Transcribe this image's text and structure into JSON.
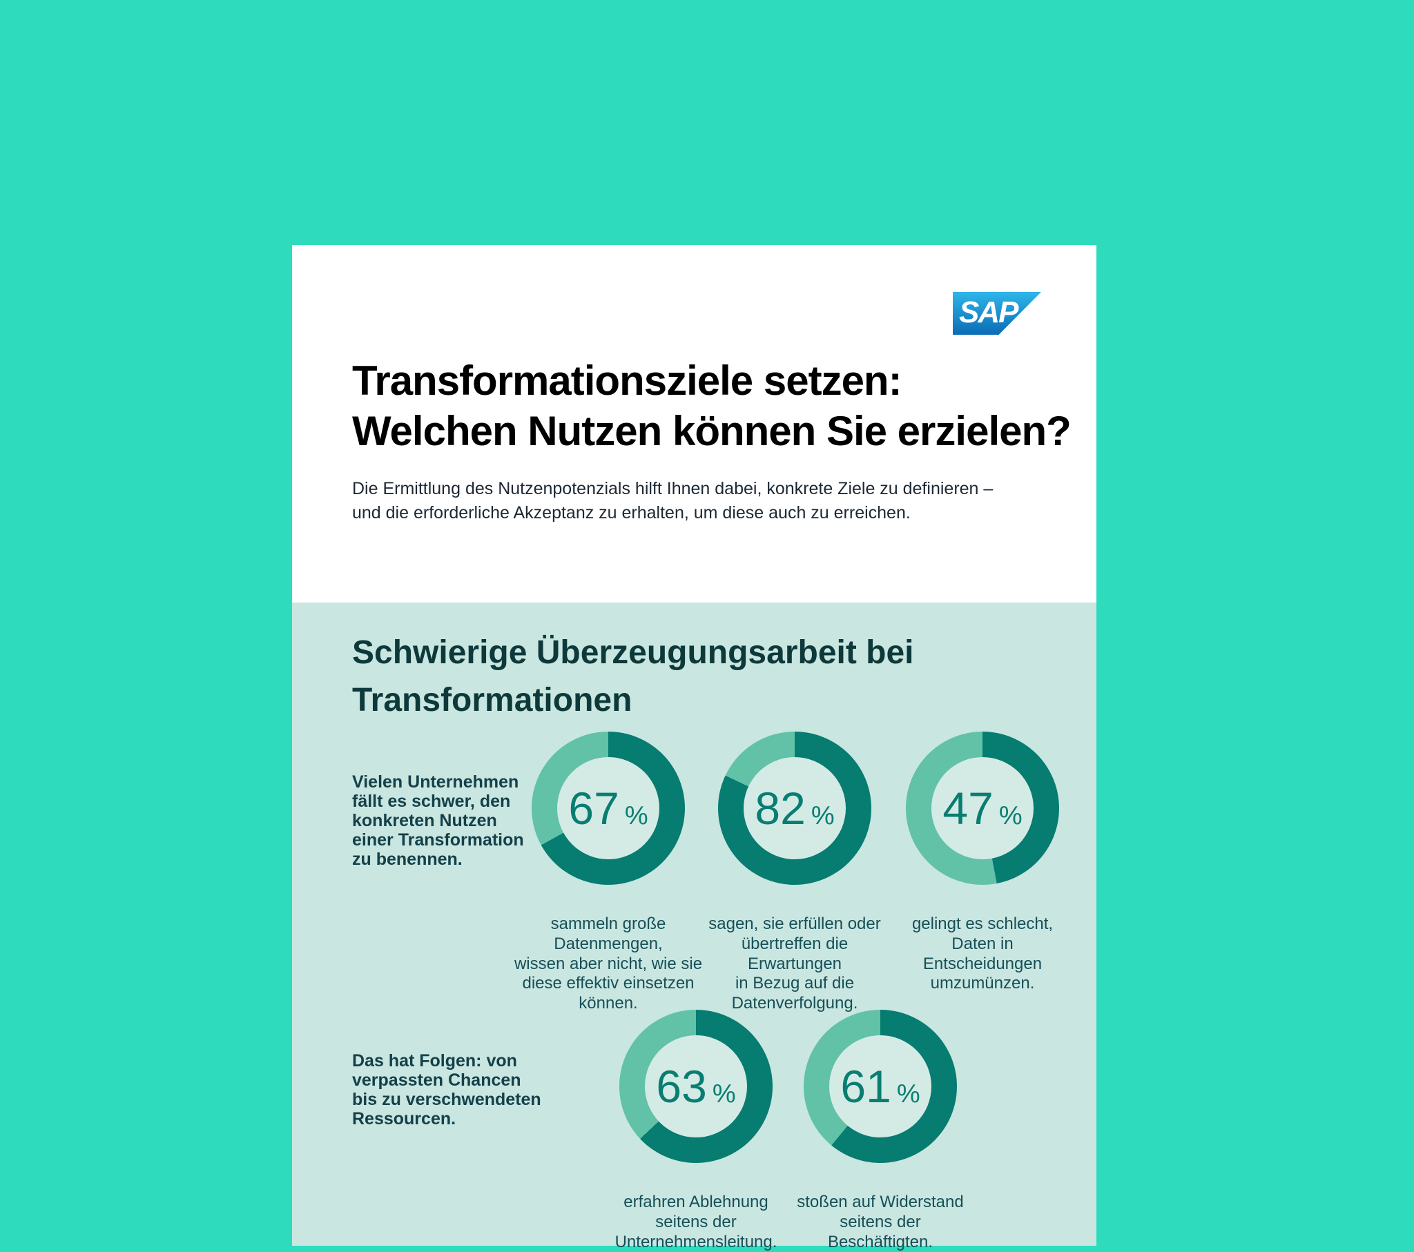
{
  "page": {
    "background_color": "#2edcbd"
  },
  "logo": {
    "text": "SAP",
    "gradient_top": "#2fb6e9",
    "gradient_bottom": "#0a6cb5"
  },
  "header": {
    "title_lines": [
      "Transformationsziele setzen:",
      "Welchen Nutzen können Sie erzielen?"
    ],
    "subtitle_lines": [
      "Die Ermittlung des Nutzenpotenzials hilft Ihnen dabei, konkrete Ziele zu definieren –",
      "und die erforderliche Akzeptanz zu erhalten, um diese auch zu erreichen."
    ]
  },
  "section": {
    "heading_lines": [
      "Schwierige Überzeugungsarbeit bei",
      "Transformationen"
    ],
    "background_color": "#c9e6e0",
    "heading_color": "#0e393b"
  },
  "rows": [
    {
      "lead_lines": [
        "Vielen Unternehmen",
        "fällt es schwer, den",
        "konkreten Nutzen",
        "einer Transformation",
        "zu benennen."
      ]
    },
    {
      "lead_lines": [
        "Das hat Folgen: von",
        "verpassten Chancen",
        "bis zu verschwendeten",
        "Ressourcen."
      ]
    }
  ],
  "chart_data": [
    {
      "type": "pie",
      "variant": "donut",
      "value": 67,
      "unit": "%",
      "segments": [
        {
          "name": "share",
          "value": 67,
          "color": "#077c71"
        },
        {
          "name": "remainder",
          "value": 33,
          "color": "#61c2a7"
        }
      ],
      "caption_lines": [
        "sammeln große",
        "Datenmengen,",
        "wissen aber nicht, wie sie",
        "diese effektiv einsetzen",
        "können."
      ]
    },
    {
      "type": "pie",
      "variant": "donut",
      "value": 82,
      "unit": "%",
      "segments": [
        {
          "name": "share",
          "value": 82,
          "color": "#077c71"
        },
        {
          "name": "remainder",
          "value": 18,
          "color": "#61c2a7"
        }
      ],
      "caption_lines": [
        "sagen, sie erfüllen oder",
        "übertreffen die",
        "Erwartungen",
        "in Bezug auf die",
        "Datenverfolgung."
      ]
    },
    {
      "type": "pie",
      "variant": "donut",
      "value": 47,
      "unit": "%",
      "segments": [
        {
          "name": "share",
          "value": 47,
          "color": "#077c71"
        },
        {
          "name": "remainder",
          "value": 53,
          "color": "#61c2a7"
        }
      ],
      "caption_lines": [
        "gelingt es schlecht,",
        "Daten in",
        "Entscheidungen",
        "umzumünzen."
      ]
    },
    {
      "type": "pie",
      "variant": "donut",
      "value": 63,
      "unit": "%",
      "segments": [
        {
          "name": "share",
          "value": 63,
          "color": "#077c71"
        },
        {
          "name": "remainder",
          "value": 37,
          "color": "#61c2a7"
        }
      ],
      "caption_lines": [
        "erfahren Ablehnung",
        "seitens der",
        "Unternehmensleitung."
      ]
    },
    {
      "type": "pie",
      "variant": "donut",
      "value": 61,
      "unit": "%",
      "segments": [
        {
          "name": "share",
          "value": 61,
          "color": "#077c71"
        },
        {
          "name": "remainder",
          "value": 39,
          "color": "#61c2a7"
        }
      ],
      "caption_lines": [
        "stoßen auf Widerstand",
        "seitens der",
        "Beschäftigten."
      ]
    }
  ]
}
